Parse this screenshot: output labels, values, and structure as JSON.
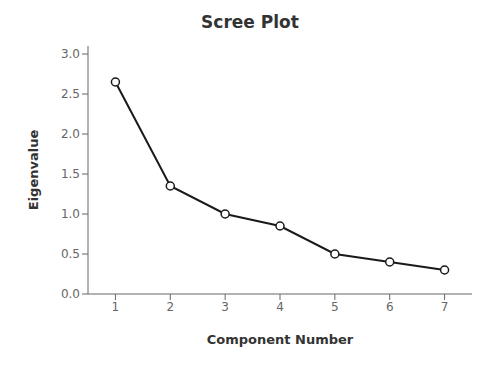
{
  "chart_data": {
    "type": "line",
    "title": "Scree Plot",
    "xlabel": "Component Number",
    "ylabel": "Eigenvalue",
    "x": [
      1,
      2,
      3,
      4,
      5,
      6,
      7
    ],
    "values": [
      2.65,
      1.35,
      1.0,
      0.85,
      0.5,
      0.4,
      0.3
    ],
    "color": "#1a1a1a",
    "marker": "circle",
    "xlim": [
      0.5,
      7.5
    ],
    "xticks": [
      1,
      2,
      3,
      4,
      5,
      6,
      7
    ],
    "ylim": [
      0.0,
      3.1
    ],
    "yticks": [
      {
        "value": 0.0,
        "label": "0.0"
      },
      0.5,
      {
        "value": 1.0,
        "label": "1.0"
      },
      1.5,
      {
        "value": 2.0,
        "label": "2.0"
      },
      2.5,
      {
        "value": 3.0,
        "label": "3.0"
      }
    ],
    "grid": false
  }
}
